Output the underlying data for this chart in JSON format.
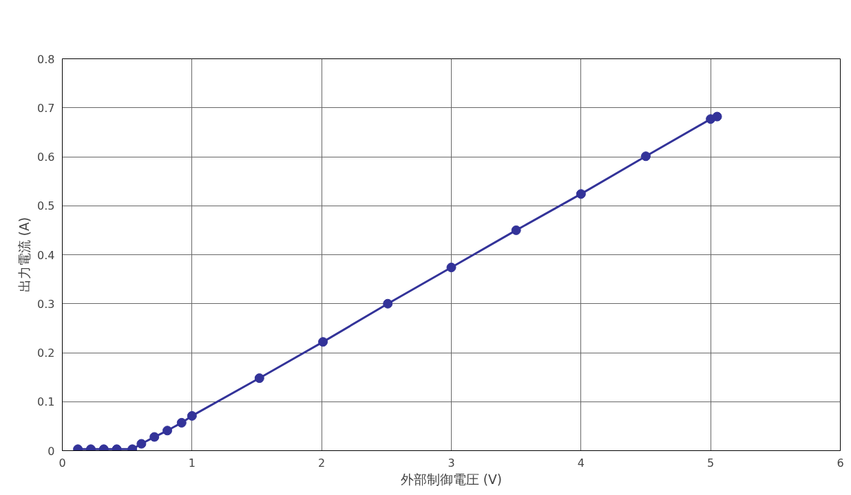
{
  "chart_data": {
    "type": "line",
    "xlabel": "外部制御電圧 (V)",
    "ylabel": "出力電流 (A)",
    "x": [
      0.12,
      0.22,
      0.32,
      0.42,
      0.54,
      0.61,
      0.71,
      0.81,
      0.92,
      1.0,
      1.52,
      2.01,
      2.51,
      3.0,
      3.5,
      4.0,
      4.5,
      5.0,
      5.05
    ],
    "series": [
      {
        "color": "#333399",
        "values": [
          0.003,
          0.003,
          0.003,
          0.003,
          0.003,
          0.014,
          0.028,
          0.041,
          0.057,
          0.071,
          0.148,
          0.222,
          0.3,
          0.374,
          0.45,
          0.524,
          0.601,
          0.677,
          0.682
        ]
      }
    ],
    "xlim": [
      0,
      6
    ],
    "xticks": [
      0,
      1,
      2,
      3,
      4,
      5,
      6
    ],
    "ylim": [
      0,
      0.8
    ],
    "yticks": [
      0,
      0.1,
      0.2,
      0.3,
      0.4,
      0.5,
      0.6,
      0.7,
      0.8
    ],
    "grid": true,
    "marker": "circle",
    "line_style": "solid"
  }
}
